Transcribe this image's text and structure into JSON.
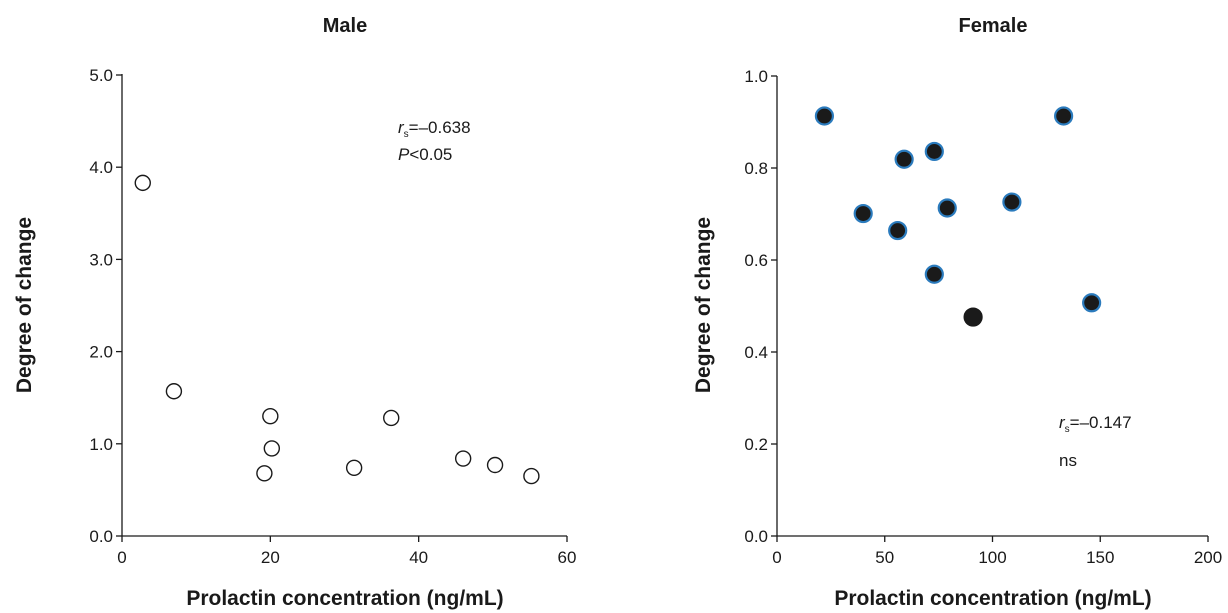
{
  "chart_data": [
    {
      "type": "scatter",
      "title": "Male",
      "xlabel": "Prolactin concentration (ng/mL)",
      "ylabel": "Degree of change",
      "xlim": [
        0,
        60
      ],
      "ylim": [
        0,
        5
      ],
      "xticks": [
        "0",
        "20",
        "40",
        "60"
      ],
      "yticks": [
        "0.0",
        "1.0",
        "2.0",
        "3.0",
        "4.0",
        "5.0"
      ],
      "grid": false,
      "marker": "open-circle",
      "annotation": {
        "stat_symbol": "r",
        "stat_subscript": "s",
        "stat_value": "=–0.638",
        "p_symbol": "P",
        "p_value": "<0.05"
      },
      "points": [
        {
          "x": 2.8,
          "y": 3.83
        },
        {
          "x": 7.0,
          "y": 1.57
        },
        {
          "x": 19.2,
          "y": 0.68
        },
        {
          "x": 20.0,
          "y": 1.3
        },
        {
          "x": 20.2,
          "y": 0.95
        },
        {
          "x": 31.3,
          "y": 0.74
        },
        {
          "x": 36.3,
          "y": 1.28
        },
        {
          "x": 46.0,
          "y": 0.84
        },
        {
          "x": 50.3,
          "y": 0.77
        },
        {
          "x": 55.2,
          "y": 0.65
        }
      ]
    },
    {
      "type": "scatter",
      "title": "Female",
      "xlabel": "Prolactin concentration (ng/mL)",
      "ylabel": "Degree of change",
      "xlim": [
        0,
        200
      ],
      "ylim": [
        0,
        1
      ],
      "xticks": [
        "0",
        "50",
        "100",
        "150",
        "200"
      ],
      "yticks": [
        "0.0",
        "0.2",
        "0.4",
        "0.6",
        "0.8",
        "1.0"
      ],
      "grid": false,
      "marker": "filled-circle",
      "colors": {
        "fill": "#1a1a1a",
        "edge": "#2b7bbd"
      },
      "annotation": {
        "stat_symbol": "r",
        "stat_subscript": "s",
        "stat_value": "=–0.147",
        "p_value": "ns"
      },
      "points": [
        {
          "x": 22,
          "y": 0.913
        },
        {
          "x": 40,
          "y": 0.701
        },
        {
          "x": 56,
          "y": 0.664
        },
        {
          "x": 59,
          "y": 0.819
        },
        {
          "x": 73,
          "y": 0.836
        },
        {
          "x": 73,
          "y": 0.569
        },
        {
          "x": 79,
          "y": 0.713
        },
        {
          "x": 91,
          "y": 0.476,
          "edge": "none"
        },
        {
          "x": 109,
          "y": 0.726
        },
        {
          "x": 133,
          "y": 0.913
        },
        {
          "x": 146,
          "y": 0.507
        }
      ]
    }
  ]
}
